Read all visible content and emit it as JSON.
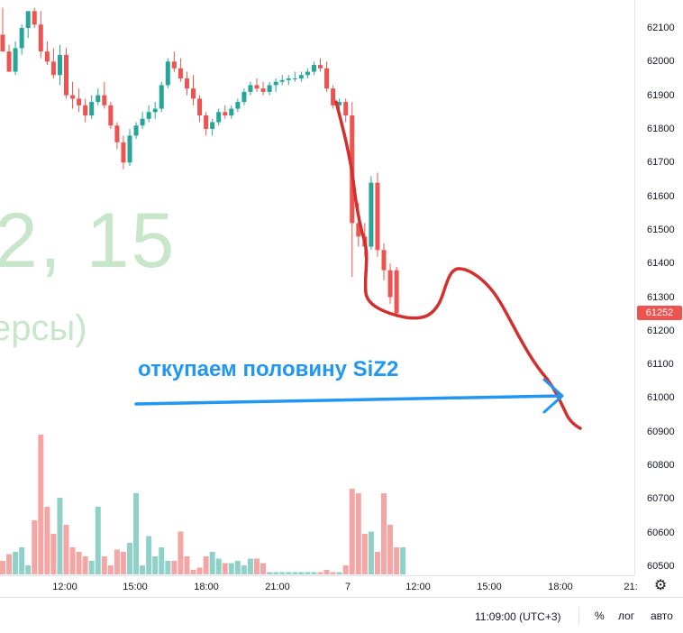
{
  "watermark": {
    "big": "2, 15",
    "small": "ерсы)"
  },
  "annotation": "откупаем половину SiZ2",
  "chart_data": {
    "type": "candlestick",
    "y_range": [
      60475,
      62165
    ],
    "y_ticks": [
      62100,
      62000,
      61900,
      61800,
      61700,
      61600,
      61500,
      61400,
      61300,
      61200,
      61100,
      61000,
      60900,
      60800,
      60700,
      60600,
      60500
    ],
    "last_price": 61252,
    "x_ticks": [
      "12:00",
      "15:00",
      "18:00",
      "21:00",
      "7",
      "12:00",
      "15:00",
      "18:00",
      "21:"
    ],
    "colors": {
      "up": "#26a69a",
      "down": "#ef5350",
      "up_volume": "#8fd0c8",
      "down_volume": "#f4a6a4",
      "annotation": "#2196f3",
      "drawing": "#d32f2f",
      "watermark": "#c8e6c9"
    },
    "candles": [
      [
        62080,
        62160,
        62030,
        62030
      ],
      [
        62030,
        62050,
        61970,
        61970
      ],
      [
        61970,
        62060,
        61960,
        62040
      ],
      [
        62040,
        62110,
        62020,
        62100
      ],
      [
        62100,
        62150,
        62070,
        62150
      ],
      [
        62150,
        62160,
        62100,
        62110
      ],
      [
        62110,
        62150,
        62010,
        62030
      ],
      [
        62030,
        62060,
        61990,
        62000
      ],
      [
        62000,
        62040,
        61950,
        61960
      ],
      [
        61960,
        62050,
        61930,
        62020
      ],
      [
        62020,
        62040,
        61890,
        61900
      ],
      [
        61900,
        61940,
        61860,
        61890
      ],
      [
        61890,
        61920,
        61850,
        61870
      ],
      [
        61870,
        61890,
        61820,
        61840
      ],
      [
        61840,
        61900,
        61830,
        61880
      ],
      [
        61880,
        61920,
        61870,
        61900
      ],
      [
        61900,
        61940,
        61860,
        61870
      ],
      [
        61870,
        61880,
        61800,
        61810
      ],
      [
        61810,
        61820,
        61740,
        61760
      ],
      [
        61760,
        61780,
        61680,
        61700
      ],
      [
        61700,
        61800,
        61690,
        61780
      ],
      [
        61780,
        61820,
        61770,
        61810
      ],
      [
        61810,
        61850,
        61800,
        61830
      ],
      [
        61830,
        61870,
        61820,
        61850
      ],
      [
        61850,
        61880,
        61830,
        61860
      ],
      [
        61860,
        61940,
        61850,
        61930
      ],
      [
        61930,
        62010,
        61920,
        62000
      ],
      [
        62000,
        62030,
        61970,
        61980
      ],
      [
        61980,
        62010,
        61940,
        61950
      ],
      [
        61950,
        61970,
        61900,
        61920
      ],
      [
        61920,
        61960,
        61870,
        61890
      ],
      [
        61890,
        61900,
        61820,
        61840
      ],
      [
        61840,
        61850,
        61780,
        61800
      ],
      [
        61800,
        61830,
        61780,
        61820
      ],
      [
        61820,
        61860,
        61810,
        61850
      ],
      [
        61850,
        61870,
        61830,
        61840
      ],
      [
        61840,
        61870,
        61830,
        61860
      ],
      [
        61860,
        61890,
        61850,
        61880
      ],
      [
        61880,
        61920,
        61870,
        61910
      ],
      [
        61910,
        61940,
        61900,
        61930
      ],
      [
        61930,
        61950,
        61910,
        61920
      ],
      [
        61920,
        61940,
        61900,
        61910
      ],
      [
        61910,
        61940,
        61900,
        61930
      ],
      [
        61930,
        61950,
        61910,
        61940
      ],
      [
        61940,
        61960,
        61930,
        61945
      ],
      [
        61945,
        61960,
        61930,
        61950
      ],
      [
        61950,
        61970,
        61940,
        61950
      ],
      [
        61950,
        61970,
        61940,
        61960
      ],
      [
        61960,
        61980,
        61950,
        61970
      ],
      [
        61970,
        62000,
        61960,
        61990
      ],
      [
        61990,
        62010,
        61970,
        61980
      ],
      [
        61980,
        62000,
        61910,
        61920
      ],
      [
        61920,
        61930,
        61860,
        61870
      ],
      [
        61870,
        61890,
        61850,
        61880
      ],
      [
        61880,
        61890,
        61820,
        61840
      ],
      [
        61840,
        61880,
        61360,
        61520
      ],
      [
        61520,
        61580,
        61450,
        61480
      ],
      [
        61480,
        61520,
        61420,
        61450
      ],
      [
        61450,
        61660,
        61440,
        61640
      ],
      [
        61640,
        61670,
        61420,
        61440
      ],
      [
        61440,
        61460,
        61350,
        61380
      ],
      [
        61380,
        61400,
        61280,
        61300
      ],
      [
        61380,
        61390,
        61240,
        61252
      ]
    ],
    "volumes": [
      30,
      45,
      50,
      60,
      20,
      120,
      310,
      150,
      90,
      170,
      110,
      60,
      50,
      40,
      30,
      150,
      40,
      20,
      55,
      50,
      70,
      180,
      20,
      85,
      40,
      60,
      30,
      30,
      95,
      40,
      10,
      15,
      40,
      50,
      35,
      25,
      25,
      30,
      20,
      35,
      35,
      25,
      5,
      5,
      5,
      5,
      5,
      5,
      5,
      5,
      5,
      10,
      5,
      5,
      20,
      190,
      180,
      90,
      95,
      50,
      180,
      110,
      60,
      60
    ]
  }
}
